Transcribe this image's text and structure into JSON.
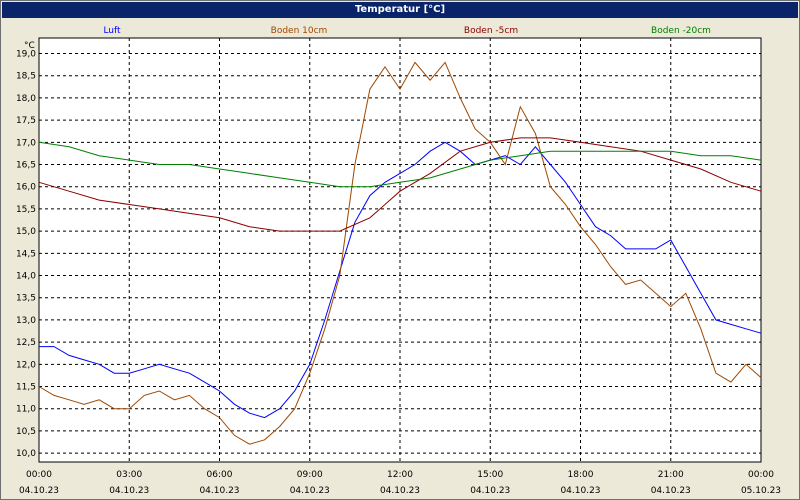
{
  "window": {
    "title": "Temperatur [°C]"
  },
  "chart_data": {
    "type": "line",
    "title": "Temperatur [°C]",
    "ylabel": "°C",
    "xlabel": "",
    "ylim": [
      9.8,
      19.35
    ],
    "xlim": [
      0,
      24
    ],
    "grid": true,
    "legend_position": "top",
    "y_ticks": [
      "10,0",
      "10,5",
      "11,0",
      "11,5",
      "12,0",
      "12,5",
      "13,0",
      "13,5",
      "14,0",
      "14,5",
      "15,0",
      "15,5",
      "16,0",
      "16,5",
      "17,0",
      "17,5",
      "18,0",
      "18,5",
      "19,0"
    ],
    "x_ticks": [
      {
        "time": "00:00",
        "date": "04.10.23"
      },
      {
        "time": "03:00",
        "date": "04.10.23"
      },
      {
        "time": "06:00",
        "date": "04.10.23"
      },
      {
        "time": "09:00",
        "date": "04.10.23"
      },
      {
        "time": "12:00",
        "date": "04.10.23"
      },
      {
        "time": "15:00",
        "date": "04.10.23"
      },
      {
        "time": "18:00",
        "date": "04.10.23"
      },
      {
        "time": "21:00",
        "date": "04.10.23"
      },
      {
        "time": "00:00",
        "date": "05.10.23"
      }
    ],
    "series": [
      {
        "name": "Luft",
        "color": "#0000ff",
        "points": [
          [
            0,
            12.4
          ],
          [
            0.5,
            12.4
          ],
          [
            1,
            12.2
          ],
          [
            1.5,
            12.1
          ],
          [
            2,
            12.0
          ],
          [
            2.5,
            11.8
          ],
          [
            3,
            11.8
          ],
          [
            3.5,
            11.9
          ],
          [
            4,
            12.0
          ],
          [
            4.5,
            11.9
          ],
          [
            5,
            11.8
          ],
          [
            5.5,
            11.6
          ],
          [
            6,
            11.4
          ],
          [
            6.5,
            11.1
          ],
          [
            7,
            10.9
          ],
          [
            7.5,
            10.8
          ],
          [
            8,
            11.0
          ],
          [
            8.5,
            11.4
          ],
          [
            9,
            12.0
          ],
          [
            9.5,
            13.0
          ],
          [
            10,
            14.1
          ],
          [
            10.5,
            15.2
          ],
          [
            11,
            15.8
          ],
          [
            11.5,
            16.1
          ],
          [
            12,
            16.3
          ],
          [
            12.5,
            16.5
          ],
          [
            13,
            16.8
          ],
          [
            13.5,
            17.0
          ],
          [
            14,
            16.8
          ],
          [
            14.5,
            16.5
          ],
          [
            15,
            16.6
          ],
          [
            15.5,
            16.7
          ],
          [
            16,
            16.5
          ],
          [
            16.5,
            16.9
          ],
          [
            17,
            16.5
          ],
          [
            17.5,
            16.1
          ],
          [
            18,
            15.6
          ],
          [
            18.5,
            15.1
          ],
          [
            19,
            14.9
          ],
          [
            19.5,
            14.6
          ],
          [
            20,
            14.6
          ],
          [
            20.5,
            14.6
          ],
          [
            21,
            14.8
          ],
          [
            21.5,
            14.2
          ],
          [
            22,
            13.6
          ],
          [
            22.5,
            13.0
          ],
          [
            23,
            12.9
          ],
          [
            23.5,
            12.8
          ],
          [
            24,
            12.7
          ]
        ]
      },
      {
        "name": "Boden 10cm",
        "color": "#a04800",
        "points": [
          [
            0,
            11.5
          ],
          [
            0.5,
            11.3
          ],
          [
            1,
            11.2
          ],
          [
            1.5,
            11.1
          ],
          [
            2,
            11.2
          ],
          [
            2.5,
            11.0
          ],
          [
            3,
            11.0
          ],
          [
            3.5,
            11.3
          ],
          [
            4,
            11.4
          ],
          [
            4.5,
            11.2
          ],
          [
            5,
            11.3
          ],
          [
            5.5,
            11.0
          ],
          [
            6,
            10.8
          ],
          [
            6.5,
            10.4
          ],
          [
            7,
            10.2
          ],
          [
            7.5,
            10.3
          ],
          [
            8,
            10.6
          ],
          [
            8.5,
            11.0
          ],
          [
            9,
            11.8
          ],
          [
            9.5,
            12.8
          ],
          [
            10,
            14.0
          ],
          [
            10.5,
            16.5
          ],
          [
            11,
            18.2
          ],
          [
            11.5,
            18.7
          ],
          [
            12,
            18.2
          ],
          [
            12.5,
            18.8
          ],
          [
            13,
            18.4
          ],
          [
            13.5,
            18.8
          ],
          [
            14,
            18.0
          ],
          [
            14.5,
            17.3
          ],
          [
            15,
            17.0
          ],
          [
            15.5,
            16.5
          ],
          [
            16,
            17.8
          ],
          [
            16.5,
            17.2
          ],
          [
            17,
            16.0
          ],
          [
            17.5,
            15.6
          ],
          [
            18,
            15.1
          ],
          [
            18.5,
            14.7
          ],
          [
            19,
            14.2
          ],
          [
            19.5,
            13.8
          ],
          [
            20,
            13.9
          ],
          [
            20.5,
            13.6
          ],
          [
            21,
            13.3
          ],
          [
            21.5,
            13.6
          ],
          [
            22,
            12.8
          ],
          [
            22.5,
            11.8
          ],
          [
            23,
            11.6
          ],
          [
            23.5,
            12.0
          ],
          [
            24,
            11.7
          ]
        ]
      },
      {
        "name": "Boden -5cm",
        "color": "#8b0000",
        "points": [
          [
            0,
            16.1
          ],
          [
            1,
            15.9
          ],
          [
            2,
            15.7
          ],
          [
            3,
            15.6
          ],
          [
            4,
            15.5
          ],
          [
            5,
            15.4
          ],
          [
            6,
            15.3
          ],
          [
            7,
            15.1
          ],
          [
            8,
            15.0
          ],
          [
            9,
            15.0
          ],
          [
            10,
            15.0
          ],
          [
            11,
            15.3
          ],
          [
            12,
            15.9
          ],
          [
            13,
            16.3
          ],
          [
            14,
            16.8
          ],
          [
            15,
            17.0
          ],
          [
            16,
            17.1
          ],
          [
            17,
            17.1
          ],
          [
            18,
            17.0
          ],
          [
            19,
            16.9
          ],
          [
            20,
            16.8
          ],
          [
            21,
            16.6
          ],
          [
            22,
            16.4
          ],
          [
            23,
            16.1
          ],
          [
            24,
            15.9
          ]
        ]
      },
      {
        "name": "Boden -20cm",
        "color": "#008000",
        "points": [
          [
            0,
            17.0
          ],
          [
            1,
            16.9
          ],
          [
            2,
            16.7
          ],
          [
            3,
            16.6
          ],
          [
            4,
            16.5
          ],
          [
            5,
            16.5
          ],
          [
            6,
            16.4
          ],
          [
            7,
            16.3
          ],
          [
            8,
            16.2
          ],
          [
            9,
            16.1
          ],
          [
            10,
            16.0
          ],
          [
            11,
            16.0
          ],
          [
            12,
            16.1
          ],
          [
            13,
            16.2
          ],
          [
            14,
            16.4
          ],
          [
            15,
            16.6
          ],
          [
            16,
            16.7
          ],
          [
            17,
            16.8
          ],
          [
            18,
            16.8
          ],
          [
            19,
            16.8
          ],
          [
            20,
            16.8
          ],
          [
            21,
            16.8
          ],
          [
            22,
            16.7
          ],
          [
            23,
            16.7
          ],
          [
            24,
            16.6
          ]
        ]
      }
    ]
  }
}
